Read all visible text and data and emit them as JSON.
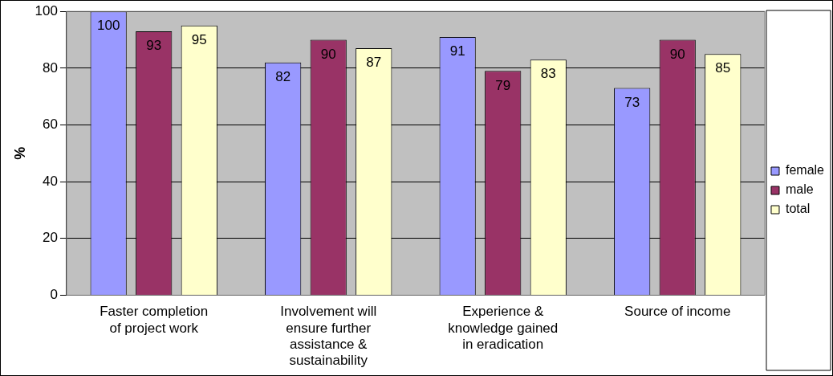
{
  "chart_data": {
    "type": "bar",
    "ylabel": "%",
    "categories": [
      "Faster completion of project work",
      "Involvement will ensure further assistance & sustainability",
      "Experience & knowledge gained in eradication",
      "Source of income"
    ],
    "series": [
      {
        "name": "female",
        "color": "#9999ff",
        "values": [
          100,
          82,
          91,
          73
        ]
      },
      {
        "name": "male",
        "color": "#993366",
        "values": [
          93,
          90,
          79,
          90
        ]
      },
      {
        "name": "total",
        "color": "#ffffcc",
        "values": [
          95,
          87,
          83,
          85
        ]
      }
    ],
    "ylim": [
      0,
      100
    ],
    "yticks": [
      0,
      20,
      40,
      60,
      80,
      100
    ],
    "grid": "y",
    "legend": "right",
    "data_labels": true
  }
}
